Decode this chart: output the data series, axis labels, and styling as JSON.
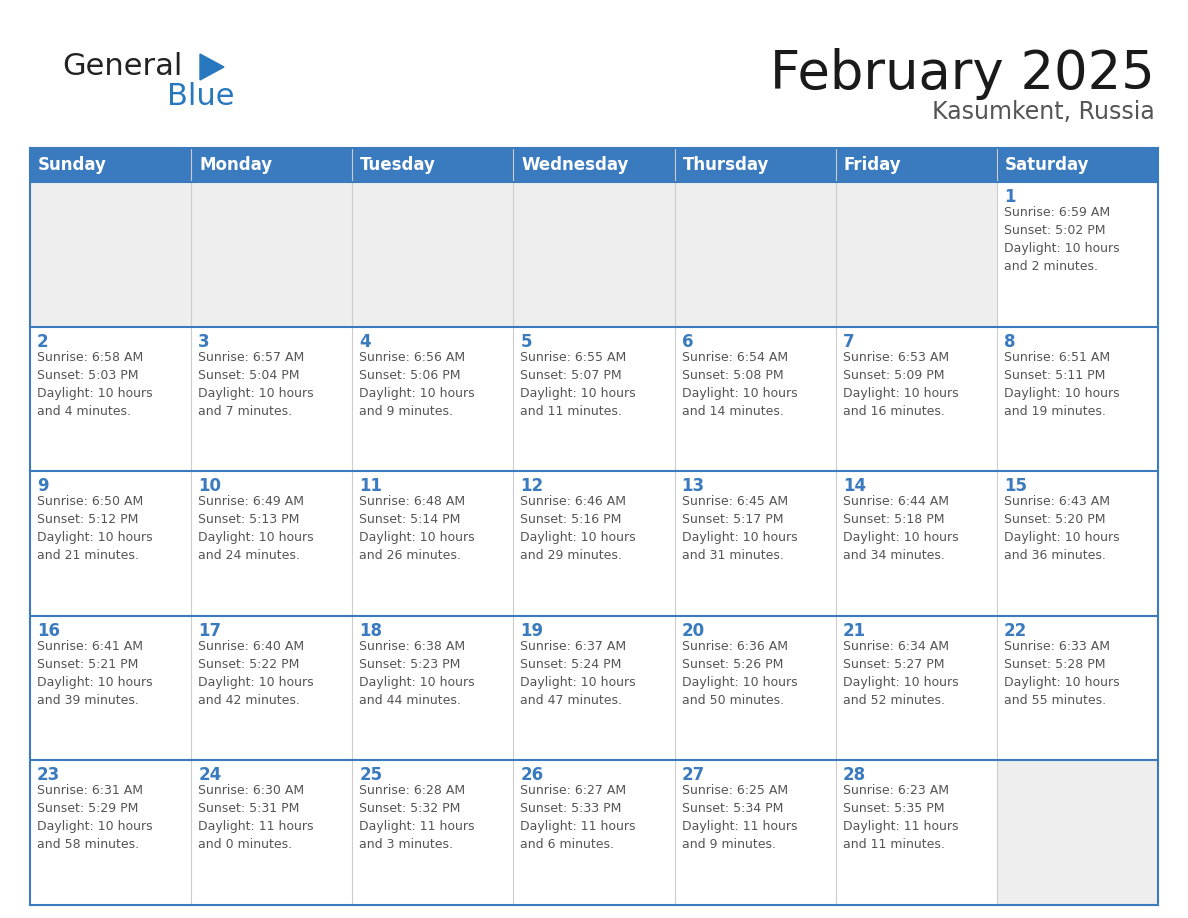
{
  "title": "February 2025",
  "subtitle": "Kasumkent, Russia",
  "header_bg_color": "#3a7abf",
  "header_text_color": "#ffffff",
  "cell_bg_white": "#ffffff",
  "cell_bg_gray": "#eeeeee",
  "cell_border_color": "#3a7abf",
  "row_sep_color": "#3a7abf",
  "day_text_color": "#3a7abf",
  "info_text_color": "#555555",
  "outer_bg_color": "#ffffff",
  "logo_general_color": "#222222",
  "logo_blue_color": "#2878c0",
  "days_of_week": [
    "Sunday",
    "Monday",
    "Tuesday",
    "Wednesday",
    "Thursday",
    "Friday",
    "Saturday"
  ],
  "title_fontsize": 38,
  "subtitle_fontsize": 17,
  "header_fontsize": 12,
  "day_num_fontsize": 12,
  "info_fontsize": 9,
  "calendar": [
    [
      {
        "day": "",
        "info": ""
      },
      {
        "day": "",
        "info": ""
      },
      {
        "day": "",
        "info": ""
      },
      {
        "day": "",
        "info": ""
      },
      {
        "day": "",
        "info": ""
      },
      {
        "day": "",
        "info": ""
      },
      {
        "day": "1",
        "info": "Sunrise: 6:59 AM\nSunset: 5:02 PM\nDaylight: 10 hours\nand 2 minutes."
      }
    ],
    [
      {
        "day": "2",
        "info": "Sunrise: 6:58 AM\nSunset: 5:03 PM\nDaylight: 10 hours\nand 4 minutes."
      },
      {
        "day": "3",
        "info": "Sunrise: 6:57 AM\nSunset: 5:04 PM\nDaylight: 10 hours\nand 7 minutes."
      },
      {
        "day": "4",
        "info": "Sunrise: 6:56 AM\nSunset: 5:06 PM\nDaylight: 10 hours\nand 9 minutes."
      },
      {
        "day": "5",
        "info": "Sunrise: 6:55 AM\nSunset: 5:07 PM\nDaylight: 10 hours\nand 11 minutes."
      },
      {
        "day": "6",
        "info": "Sunrise: 6:54 AM\nSunset: 5:08 PM\nDaylight: 10 hours\nand 14 minutes."
      },
      {
        "day": "7",
        "info": "Sunrise: 6:53 AM\nSunset: 5:09 PM\nDaylight: 10 hours\nand 16 minutes."
      },
      {
        "day": "8",
        "info": "Sunrise: 6:51 AM\nSunset: 5:11 PM\nDaylight: 10 hours\nand 19 minutes."
      }
    ],
    [
      {
        "day": "9",
        "info": "Sunrise: 6:50 AM\nSunset: 5:12 PM\nDaylight: 10 hours\nand 21 minutes."
      },
      {
        "day": "10",
        "info": "Sunrise: 6:49 AM\nSunset: 5:13 PM\nDaylight: 10 hours\nand 24 minutes."
      },
      {
        "day": "11",
        "info": "Sunrise: 6:48 AM\nSunset: 5:14 PM\nDaylight: 10 hours\nand 26 minutes."
      },
      {
        "day": "12",
        "info": "Sunrise: 6:46 AM\nSunset: 5:16 PM\nDaylight: 10 hours\nand 29 minutes."
      },
      {
        "day": "13",
        "info": "Sunrise: 6:45 AM\nSunset: 5:17 PM\nDaylight: 10 hours\nand 31 minutes."
      },
      {
        "day": "14",
        "info": "Sunrise: 6:44 AM\nSunset: 5:18 PM\nDaylight: 10 hours\nand 34 minutes."
      },
      {
        "day": "15",
        "info": "Sunrise: 6:43 AM\nSunset: 5:20 PM\nDaylight: 10 hours\nand 36 minutes."
      }
    ],
    [
      {
        "day": "16",
        "info": "Sunrise: 6:41 AM\nSunset: 5:21 PM\nDaylight: 10 hours\nand 39 minutes."
      },
      {
        "day": "17",
        "info": "Sunrise: 6:40 AM\nSunset: 5:22 PM\nDaylight: 10 hours\nand 42 minutes."
      },
      {
        "day": "18",
        "info": "Sunrise: 6:38 AM\nSunset: 5:23 PM\nDaylight: 10 hours\nand 44 minutes."
      },
      {
        "day": "19",
        "info": "Sunrise: 6:37 AM\nSunset: 5:24 PM\nDaylight: 10 hours\nand 47 minutes."
      },
      {
        "day": "20",
        "info": "Sunrise: 6:36 AM\nSunset: 5:26 PM\nDaylight: 10 hours\nand 50 minutes."
      },
      {
        "day": "21",
        "info": "Sunrise: 6:34 AM\nSunset: 5:27 PM\nDaylight: 10 hours\nand 52 minutes."
      },
      {
        "day": "22",
        "info": "Sunrise: 6:33 AM\nSunset: 5:28 PM\nDaylight: 10 hours\nand 55 minutes."
      }
    ],
    [
      {
        "day": "23",
        "info": "Sunrise: 6:31 AM\nSunset: 5:29 PM\nDaylight: 10 hours\nand 58 minutes."
      },
      {
        "day": "24",
        "info": "Sunrise: 6:30 AM\nSunset: 5:31 PM\nDaylight: 11 hours\nand 0 minutes."
      },
      {
        "day": "25",
        "info": "Sunrise: 6:28 AM\nSunset: 5:32 PM\nDaylight: 11 hours\nand 3 minutes."
      },
      {
        "day": "26",
        "info": "Sunrise: 6:27 AM\nSunset: 5:33 PM\nDaylight: 11 hours\nand 6 minutes."
      },
      {
        "day": "27",
        "info": "Sunrise: 6:25 AM\nSunset: 5:34 PM\nDaylight: 11 hours\nand 9 minutes."
      },
      {
        "day": "28",
        "info": "Sunrise: 6:23 AM\nSunset: 5:35 PM\nDaylight: 11 hours\nand 11 minutes."
      },
      {
        "day": "",
        "info": ""
      }
    ]
  ]
}
